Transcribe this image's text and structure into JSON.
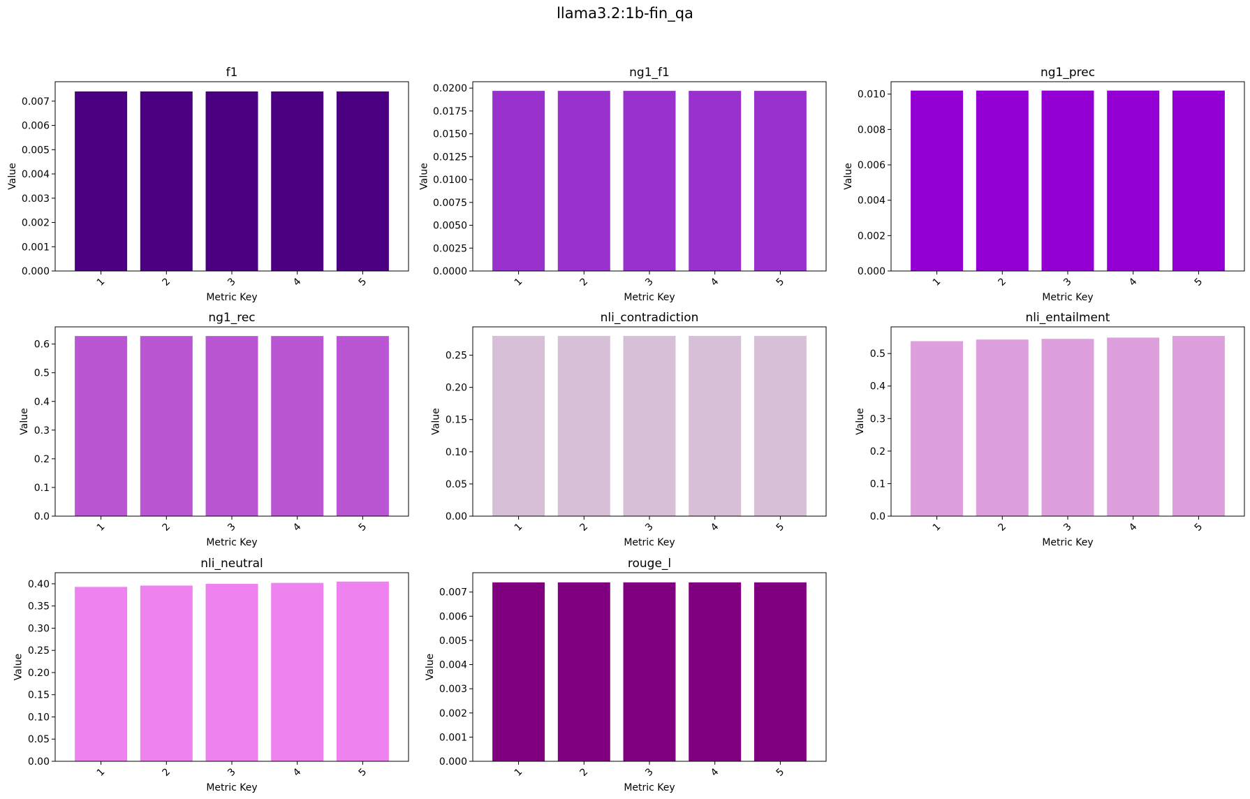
{
  "figure": {
    "title": "llama3.2:1b-fin_qa"
  },
  "chart_data": [
    {
      "type": "bar",
      "title": "f1",
      "xlabel": "Metric Key",
      "ylabel": "Value",
      "categories": [
        "1",
        "2",
        "3",
        "4",
        "5"
      ],
      "values": [
        0.0074,
        0.0074,
        0.0074,
        0.0074,
        0.0074
      ],
      "ylim": [
        0,
        0.0078
      ],
      "yticks": [
        "0.000",
        "0.001",
        "0.002",
        "0.003",
        "0.004",
        "0.005",
        "0.006",
        "0.007"
      ],
      "color": "#4b0082"
    },
    {
      "type": "bar",
      "title": "ng1_f1",
      "xlabel": "Metric Key",
      "ylabel": "Value",
      "categories": [
        "1",
        "2",
        "3",
        "4",
        "5"
      ],
      "values": [
        0.0197,
        0.0197,
        0.0197,
        0.0197,
        0.0197
      ],
      "ylim": [
        0,
        0.0207
      ],
      "yticks": [
        "0.0000",
        "0.0025",
        "0.0050",
        "0.0075",
        "0.0100",
        "0.0125",
        "0.0150",
        "0.0175",
        "0.0200"
      ],
      "color": "#9932cc"
    },
    {
      "type": "bar",
      "title": "ng1_prec",
      "xlabel": "Metric Key",
      "ylabel": "Value",
      "categories": [
        "1",
        "2",
        "3",
        "4",
        "5"
      ],
      "values": [
        0.0102,
        0.0102,
        0.0102,
        0.0102,
        0.0102
      ],
      "ylim": [
        0,
        0.0107
      ],
      "yticks": [
        "0.000",
        "0.002",
        "0.004",
        "0.006",
        "0.008",
        "0.010"
      ],
      "color": "#9400d3"
    },
    {
      "type": "bar",
      "title": "ng1_rec",
      "xlabel": "Metric Key",
      "ylabel": "Value",
      "categories": [
        "1",
        "2",
        "3",
        "4",
        "5"
      ],
      "values": [
        0.628,
        0.628,
        0.628,
        0.628,
        0.628
      ],
      "ylim": [
        0,
        0.66
      ],
      "yticks": [
        "0.0",
        "0.1",
        "0.2",
        "0.3",
        "0.4",
        "0.5",
        "0.6"
      ],
      "color": "#ba55d3"
    },
    {
      "type": "bar",
      "title": "nli_contradiction",
      "xlabel": "Metric Key",
      "ylabel": "Value",
      "categories": [
        "1",
        "2",
        "3",
        "4",
        "5"
      ],
      "values": [
        0.28,
        0.28,
        0.28,
        0.28,
        0.28
      ],
      "ylim": [
        0,
        0.294
      ],
      "yticks": [
        "0.00",
        "0.05",
        "0.10",
        "0.15",
        "0.20",
        "0.25"
      ],
      "color": "#d8bfd8"
    },
    {
      "type": "bar",
      "title": "nli_entailment",
      "xlabel": "Metric Key",
      "ylabel": "Value",
      "categories": [
        "1",
        "2",
        "3",
        "4",
        "5"
      ],
      "values": [
        0.538,
        0.543,
        0.545,
        0.549,
        0.554
      ],
      "ylim": [
        0,
        0.582
      ],
      "yticks": [
        "0.0",
        "0.1",
        "0.2",
        "0.3",
        "0.4",
        "0.5"
      ],
      "color": "#dda0dd"
    },
    {
      "type": "bar",
      "title": "nli_neutral",
      "xlabel": "Metric Key",
      "ylabel": "Value",
      "categories": [
        "1",
        "2",
        "3",
        "4",
        "5"
      ],
      "values": [
        0.393,
        0.396,
        0.4,
        0.402,
        0.405
      ],
      "ylim": [
        0,
        0.425
      ],
      "yticks": [
        "0.00",
        "0.05",
        "0.10",
        "0.15",
        "0.20",
        "0.25",
        "0.30",
        "0.35",
        "0.40"
      ],
      "color": "#ee82ee"
    },
    {
      "type": "bar",
      "title": "rouge_l",
      "xlabel": "Metric Key",
      "ylabel": "Value",
      "categories": [
        "1",
        "2",
        "3",
        "4",
        "5"
      ],
      "values": [
        0.0074,
        0.0074,
        0.0074,
        0.0074,
        0.0074
      ],
      "ylim": [
        0,
        0.0078
      ],
      "yticks": [
        "0.000",
        "0.001",
        "0.002",
        "0.003",
        "0.004",
        "0.005",
        "0.006",
        "0.007"
      ],
      "color": "#800080"
    }
  ]
}
